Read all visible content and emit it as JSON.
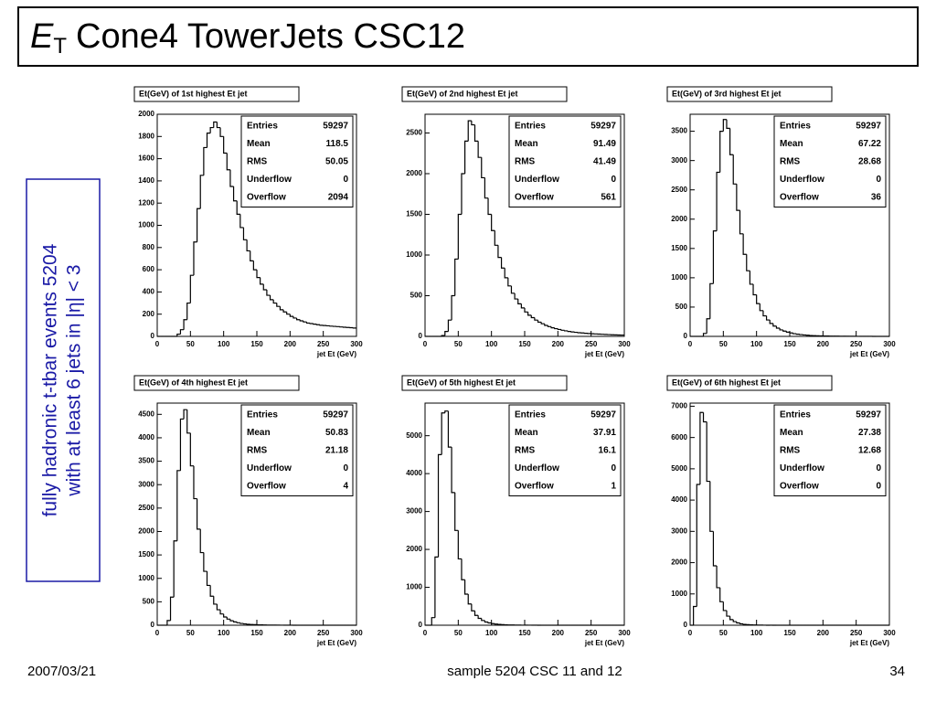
{
  "slide": {
    "title_e": "E",
    "title_sub": "T",
    "title_rest": "Cone4 TowerJets CSC12",
    "side_lines": [
      "fully hadronic t-tbar events 5204",
      "with at least 6 jets in |η| < 3"
    ],
    "footer_date": "2007/03/21",
    "footer_center": "sample 5204 CSC 11 and 12",
    "page_number": 34
  },
  "chart_data": [
    {
      "type": "histogram",
      "title": "Et(GeV) of 1st highest Et jet",
      "x_label": "jet Et (GeV)",
      "color": "#000000",
      "bins": [
        0,
        5,
        10,
        15,
        20,
        25,
        30,
        35,
        40,
        45,
        50,
        55,
        60,
        65,
        70,
        75,
        80,
        85,
        90,
        95,
        100,
        105,
        110,
        115,
        120,
        125,
        130,
        135,
        140,
        145,
        150,
        155,
        160,
        165,
        170,
        175,
        180,
        185,
        190,
        195,
        200,
        205,
        210,
        215,
        220,
        225,
        230,
        235,
        240,
        245,
        250,
        255,
        260,
        265,
        270,
        275,
        280,
        285,
        290,
        295,
        300
      ],
      "values": [
        0,
        0,
        0,
        0,
        0,
        0,
        20,
        60,
        150,
        300,
        550,
        850,
        1150,
        1450,
        1700,
        1830,
        1880,
        1930,
        1880,
        1800,
        1650,
        1500,
        1350,
        1220,
        1100,
        980,
        870,
        770,
        680,
        600,
        530,
        470,
        420,
        370,
        330,
        300,
        270,
        240,
        220,
        200,
        180,
        165,
        150,
        140,
        130,
        120,
        115,
        110,
        105,
        100,
        98,
        95,
        92,
        90,
        88,
        85,
        82,
        80,
        78,
        75
      ],
      "xlim": [
        0,
        300
      ],
      "xticks": [
        0,
        50,
        100,
        150,
        200,
        250,
        300
      ],
      "ylim": [
        0,
        2000
      ],
      "yticks": [
        0,
        200,
        400,
        600,
        800,
        1000,
        1200,
        1400,
        1600,
        1800,
        2000
      ],
      "stats": [
        {
          "name": "Entries",
          "value": 59297
        },
        {
          "name": "Mean",
          "value": 118.5
        },
        {
          "name": "RMS",
          "value": 50.05
        },
        {
          "name": "Underflow",
          "value": 0
        },
        {
          "name": "Overflow",
          "value": 2094
        }
      ]
    },
    {
      "type": "histogram",
      "title": "Et(GeV) of 2nd highest Et jet",
      "x_label": "jet Et (GeV)",
      "color": "#000000",
      "bins": [
        0,
        5,
        10,
        15,
        20,
        25,
        30,
        35,
        40,
        45,
        50,
        55,
        60,
        65,
        70,
        75,
        80,
        85,
        90,
        95,
        100,
        105,
        110,
        115,
        120,
        125,
        130,
        135,
        140,
        145,
        150,
        155,
        160,
        165,
        170,
        175,
        180,
        185,
        190,
        195,
        200,
        205,
        210,
        215,
        220,
        225,
        230,
        235,
        240,
        245,
        250,
        255,
        260,
        265,
        270,
        275,
        280,
        285,
        290,
        295,
        300
      ],
      "values": [
        0,
        0,
        0,
        0,
        0,
        10,
        60,
        200,
        500,
        950,
        1500,
        2000,
        2400,
        2650,
        2600,
        2400,
        2200,
        1950,
        1700,
        1500,
        1300,
        1120,
        970,
        840,
        720,
        620,
        530,
        460,
        400,
        350,
        300,
        260,
        230,
        200,
        175,
        155,
        135,
        120,
        105,
        95,
        85,
        75,
        68,
        60,
        55,
        50,
        45,
        42,
        38,
        35,
        32,
        30,
        28,
        26,
        24,
        22,
        20,
        18,
        17,
        16
      ],
      "xlim": [
        0,
        300
      ],
      "xticks": [
        0,
        50,
        100,
        150,
        200,
        250,
        300
      ],
      "ylim": [
        0,
        2730
      ],
      "yticks": [
        0,
        500,
        1000,
        1500,
        2000,
        2500
      ],
      "stats": [
        {
          "name": "Entries",
          "value": 59297
        },
        {
          "name": "Mean",
          "value": 91.49
        },
        {
          "name": "RMS",
          "value": 41.49
        },
        {
          "name": "Underflow",
          "value": 0
        },
        {
          "name": "Overflow",
          "value": 561
        }
      ]
    },
    {
      "type": "histogram",
      "title": "Et(GeV) of 3rd highest Et jet",
      "x_label": "jet Et (GeV)",
      "color": "#000000",
      "bins": [
        0,
        5,
        10,
        15,
        20,
        25,
        30,
        35,
        40,
        45,
        50,
        55,
        60,
        65,
        70,
        75,
        80,
        85,
        90,
        95,
        100,
        105,
        110,
        115,
        120,
        125,
        130,
        135,
        140,
        145,
        150,
        155,
        160,
        165,
        170,
        175,
        180,
        185,
        190,
        195,
        200,
        205,
        210,
        215,
        220,
        225,
        230,
        235,
        240,
        245,
        250,
        255,
        260,
        265,
        270,
        275,
        280,
        285,
        290,
        295,
        300
      ],
      "values": [
        0,
        0,
        0,
        0,
        50,
        300,
        900,
        1800,
        2800,
        3500,
        3700,
        3550,
        3100,
        2600,
        2150,
        1750,
        1400,
        1120,
        890,
        710,
        560,
        440,
        350,
        280,
        220,
        175,
        140,
        110,
        90,
        72,
        58,
        46,
        37,
        30,
        24,
        19,
        15,
        12,
        10,
        8,
        7,
        6,
        5,
        4,
        4,
        3,
        3,
        2,
        2,
        2,
        1,
        1,
        1,
        1,
        1,
        0,
        0,
        0,
        0,
        0
      ],
      "xlim": [
        0,
        300
      ],
      "xticks": [
        0,
        50,
        100,
        150,
        200,
        250,
        300
      ],
      "ylim": [
        0,
        3790
      ],
      "yticks": [
        0,
        500,
        1000,
        1500,
        2000,
        2500,
        3000,
        3500
      ],
      "stats": [
        {
          "name": "Entries",
          "value": 59297
        },
        {
          "name": "Mean",
          "value": 67.22
        },
        {
          "name": "RMS",
          "value": 28.68
        },
        {
          "name": "Underflow",
          "value": 0
        },
        {
          "name": "Overflow",
          "value": 36
        }
      ]
    },
    {
      "type": "histogram",
      "title": "Et(GeV) of 4th highest Et jet",
      "x_label": "jet Et (GeV)",
      "color": "#000000",
      "bins": [
        0,
        5,
        10,
        15,
        20,
        25,
        30,
        35,
        40,
        45,
        50,
        55,
        60,
        65,
        70,
        75,
        80,
        85,
        90,
        95,
        100,
        105,
        110,
        115,
        120,
        125,
        130,
        135,
        140,
        145,
        150,
        155,
        160,
        165,
        170,
        175,
        180,
        185,
        190,
        195,
        200,
        205,
        210,
        215,
        220,
        225,
        230,
        235,
        240,
        245,
        250,
        255,
        260,
        265,
        270,
        275,
        280,
        285,
        290,
        295,
        300
      ],
      "values": [
        0,
        0,
        0,
        100,
        600,
        1800,
        3300,
        4400,
        4600,
        4100,
        3400,
        2700,
        2050,
        1550,
        1150,
        850,
        620,
        450,
        330,
        240,
        175,
        130,
        95,
        70,
        52,
        38,
        28,
        21,
        16,
        12,
        9,
        7,
        5,
        4,
        3,
        2,
        2,
        1,
        1,
        1,
        1,
        0,
        0,
        0,
        0,
        0,
        0,
        0,
        0,
        0,
        0,
        0,
        0,
        0,
        0,
        0,
        0,
        0,
        0,
        0
      ],
      "xlim": [
        0,
        300
      ],
      "xticks": [
        0,
        50,
        100,
        150,
        200,
        250,
        300
      ],
      "ylim": [
        0,
        4740
      ],
      "yticks": [
        0,
        500,
        1000,
        1500,
        2000,
        2500,
        3000,
        3500,
        4000,
        4500
      ],
      "stats": [
        {
          "name": "Entries",
          "value": 59297
        },
        {
          "name": "Mean",
          "value": 50.83
        },
        {
          "name": "RMS",
          "value": 21.18
        },
        {
          "name": "Underflow",
          "value": 0
        },
        {
          "name": "Overflow",
          "value": 4
        }
      ]
    },
    {
      "type": "histogram",
      "title": "Et(GeV) of 5th highest Et jet",
      "x_label": "jet Et (GeV)",
      "color": "#000000",
      "bins": [
        0,
        5,
        10,
        15,
        20,
        25,
        30,
        35,
        40,
        45,
        50,
        55,
        60,
        65,
        70,
        75,
        80,
        85,
        90,
        95,
        100,
        105,
        110,
        115,
        120,
        125,
        130,
        135,
        140,
        145,
        150,
        155,
        160,
        165,
        170,
        175,
        180,
        185,
        190,
        195,
        200,
        205,
        210,
        215,
        220,
        225,
        230,
        235,
        240,
        245,
        250,
        255,
        260,
        265,
        270,
        275,
        280,
        285,
        290,
        295,
        300
      ],
      "values": [
        0,
        0,
        200,
        1800,
        4500,
        5600,
        5650,
        4700,
        3500,
        2500,
        1750,
        1200,
        820,
        560,
        380,
        260,
        180,
        125,
        85,
        60,
        42,
        30,
        21,
        15,
        11,
        8,
        6,
        4,
        3,
        2,
        2,
        1,
        1,
        1,
        0,
        0,
        0,
        0,
        0,
        0,
        0,
        0,
        0,
        0,
        0,
        0,
        0,
        0,
        0,
        0,
        0,
        0,
        0,
        0,
        0,
        0,
        0,
        0,
        0,
        0
      ],
      "xlim": [
        0,
        300
      ],
      "xticks": [
        0,
        50,
        100,
        150,
        200,
        250,
        300
      ],
      "ylim": [
        0,
        5860
      ],
      "yticks": [
        0,
        1000,
        2000,
        3000,
        4000,
        5000
      ],
      "stats": [
        {
          "name": "Entries",
          "value": 59297
        },
        {
          "name": "Mean",
          "value": 37.91
        },
        {
          "name": "RMS",
          "value": 16.1
        },
        {
          "name": "Underflow",
          "value": 0
        },
        {
          "name": "Overflow",
          "value": 1
        }
      ]
    },
    {
      "type": "histogram",
      "title": "Et(GeV) of 6th highest Et jet",
      "x_label": "jet Et (GeV)",
      "color": "#000000",
      "bins": [
        0,
        5,
        10,
        15,
        20,
        25,
        30,
        35,
        40,
        45,
        50,
        55,
        60,
        65,
        70,
        75,
        80,
        85,
        90,
        95,
        100,
        105,
        110,
        115,
        120,
        125,
        130,
        135,
        140,
        145,
        150,
        155,
        160,
        165,
        170,
        175,
        180,
        185,
        190,
        195,
        200,
        205,
        210,
        215,
        220,
        225,
        230,
        235,
        240,
        245,
        250,
        255,
        260,
        265,
        270,
        275,
        280,
        285,
        290,
        295,
        300
      ],
      "values": [
        0,
        600,
        4500,
        6800,
        6500,
        4600,
        3000,
        1900,
        1200,
        750,
        470,
        290,
        180,
        115,
        72,
        45,
        28,
        18,
        11,
        7,
        5,
        3,
        2,
        1,
        1,
        0,
        0,
        0,
        0,
        0,
        0,
        0,
        0,
        0,
        0,
        0,
        0,
        0,
        0,
        0,
        0,
        0,
        0,
        0,
        0,
        0,
        0,
        0,
        0,
        0,
        0,
        0,
        0,
        0,
        0,
        0,
        0,
        0,
        0,
        0
      ],
      "xlim": [
        0,
        300
      ],
      "xticks": [
        0,
        50,
        100,
        150,
        200,
        250,
        300
      ],
      "ylim": [
        0,
        7100
      ],
      "yticks": [
        0,
        1000,
        2000,
        3000,
        4000,
        5000,
        6000,
        7000
      ],
      "stats": [
        {
          "name": "Entries",
          "value": 59297
        },
        {
          "name": "Mean",
          "value": 27.38
        },
        {
          "name": "RMS",
          "value": 12.68
        },
        {
          "name": "Underflow",
          "value": 0
        },
        {
          "name": "Overflow",
          "value": 0
        }
      ]
    }
  ]
}
